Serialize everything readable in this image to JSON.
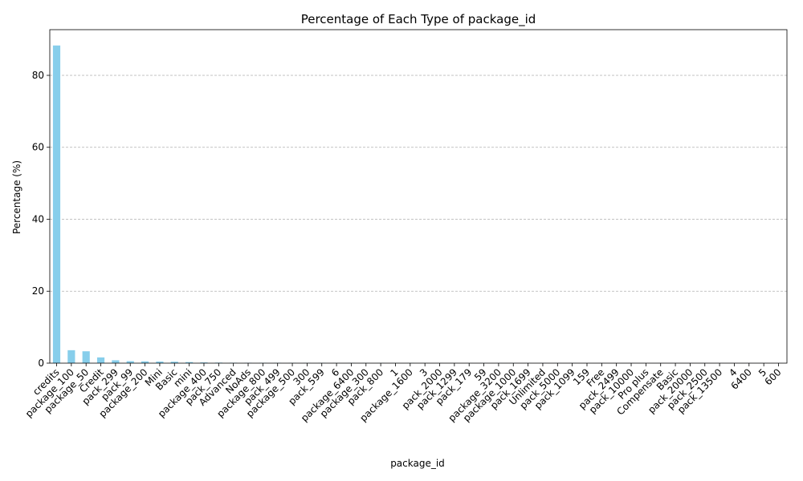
{
  "chart_data": {
    "type": "bar",
    "title": "Percentage of Each Type of package_id",
    "xlabel": "package_id",
    "ylabel": "Percentage (%)",
    "ylim": [
      0,
      92.7
    ],
    "yticks": [
      0,
      20,
      40,
      60,
      80
    ],
    "grid": "y-dashed",
    "bar_color": "#87ceeb",
    "categories": [
      "credits",
      "package_100",
      "package_50",
      "Credit",
      "pack_299",
      "pack_99",
      "package_200",
      "Mini",
      "Basic",
      "mini",
      "package_400",
      "pack_750",
      "Advanced",
      "NoAds",
      "package_800",
      "pack_499",
      "package_500",
      "300",
      "pack_599",
      "6",
      "package_6400",
      "package_300",
      "pack_800",
      "1",
      "package_1600",
      "3",
      "pack_2000",
      "pack_1299",
      "pack_179",
      "59",
      "package_3200",
      "package_1000",
      "pack_1699",
      "Unlimited",
      "pack_5000",
      "pack_1099",
      "159",
      "Free",
      "pack_2499",
      "pack_10000",
      "Pro plus",
      "Compensate",
      "Basic",
      "pack_20000",
      "pack_2500",
      "pack_13500",
      "4",
      "6400",
      "5",
      "600"
    ],
    "values": [
      88.3,
      3.6,
      3.3,
      1.6,
      0.8,
      0.55,
      0.5,
      0.45,
      0.4,
      0.3,
      0.2,
      0.15,
      0.12,
      0.1,
      0.08,
      0.08,
      0.07,
      0.06,
      0.06,
      0.05,
      0.05,
      0.05,
      0.04,
      0.04,
      0.04,
      0.03,
      0.03,
      0.03,
      0.03,
      0.02,
      0.02,
      0.02,
      0.02,
      0.02,
      0.02,
      0.02,
      0.01,
      0.01,
      0.01,
      0.01,
      0.01,
      0.01,
      0.01,
      0.01,
      0.01,
      0.01,
      0.01,
      0.01,
      0.01,
      0.01
    ]
  }
}
